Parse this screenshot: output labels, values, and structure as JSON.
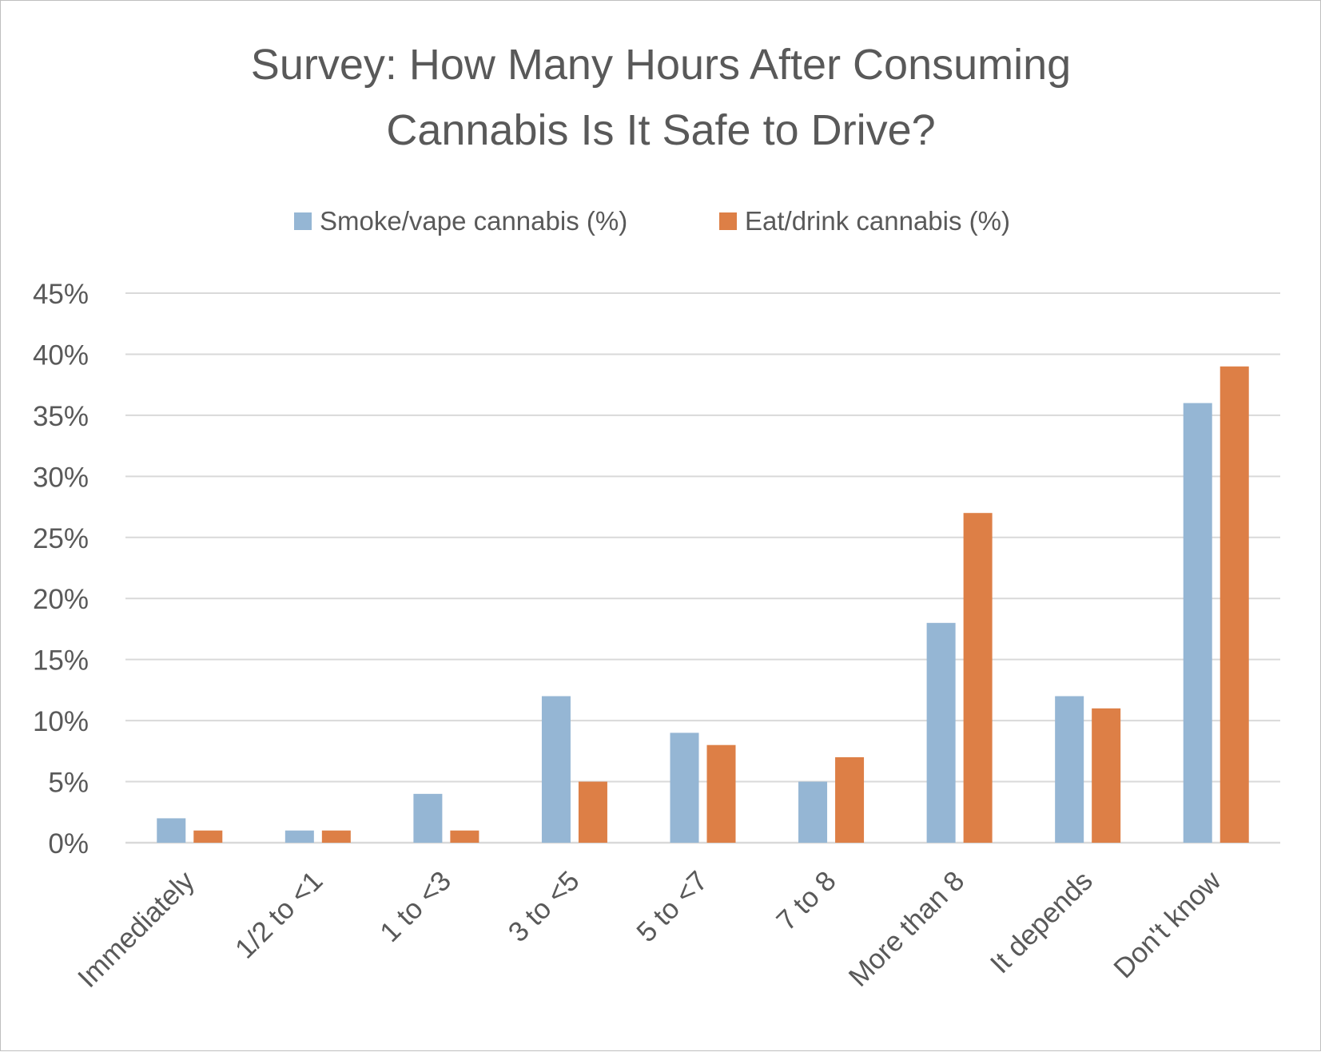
{
  "chart_data": {
    "type": "bar",
    "title_lines": [
      "Survey: How Many Hours After Consuming",
      "Cannabis Is It Safe to Drive?"
    ],
    "categories": [
      "Immediately",
      "1/2 to <1",
      "1 to <3",
      "3 to <5",
      "5 to <7",
      "7 to 8",
      "More than 8",
      "It depends",
      "Don't know"
    ],
    "series": [
      {
        "name": "Smoke/vape cannabis (%)",
        "color": "#95b6d4",
        "values": [
          2,
          1,
          4,
          12,
          9,
          5,
          18,
          12,
          36
        ]
      },
      {
        "name": "Eat/drink cannabis (%)",
        "color": "#dd7f46",
        "values": [
          1,
          1,
          1,
          5,
          8,
          7,
          27,
          11,
          39
        ]
      }
    ],
    "y_ticks": [
      "0%",
      "5%",
      "10%",
      "15%",
      "20%",
      "25%",
      "30%",
      "35%",
      "40%",
      "45%"
    ],
    "ylim": [
      0,
      45
    ],
    "y_step": 5,
    "grid": true,
    "legend_position": "top-center",
    "gridline_color": "#d9d9d9",
    "text_color": "#595959"
  }
}
